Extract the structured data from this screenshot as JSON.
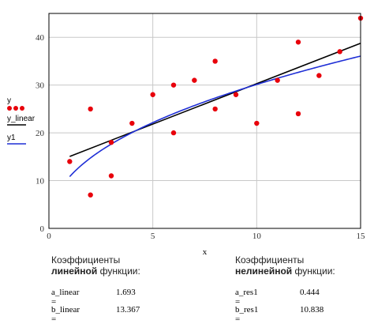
{
  "chart_data": {
    "type": "scatter",
    "xlabel": "x",
    "xlim": [
      0,
      15
    ],
    "ylim": [
      0,
      45
    ],
    "xticks": [
      0,
      5,
      10,
      15
    ],
    "yticks": [
      0,
      10,
      20,
      30,
      40
    ],
    "legend": {
      "y_label": "y",
      "y_linear_label": "y_linear",
      "y1_label": "y1",
      "placement": "left-outside"
    },
    "points": {
      "x": [
        1,
        2,
        2,
        3,
        3,
        4,
        5,
        6,
        6,
        7,
        8,
        8,
        9,
        10,
        11,
        12,
        12,
        13,
        14,
        15
      ],
      "y": [
        14,
        25,
        7,
        18,
        11,
        22,
        28,
        30,
        20,
        31,
        35,
        25,
        28,
        22,
        31,
        39,
        24,
        32,
        37,
        44
      ]
    },
    "linear": {
      "a": 1.693,
      "b": 13.367,
      "x_range": [
        1,
        15
      ]
    },
    "nonlinear": {
      "a": 0.444,
      "b": 10.838,
      "x_range": [
        1,
        15
      ]
    },
    "colors": {
      "points": "#e8000b",
      "linear": "#000000",
      "nonlinear": "#1f2fd6",
      "grid": "#c8c8c8",
      "frame": "#000000"
    }
  },
  "coef_linear": {
    "heading1": "Коэффициенты",
    "heading2_bold": "линейной",
    "heading2_rest": "функции:",
    "a_name": "a_linear =",
    "a_value": "1.693",
    "b_name": "b_linear =",
    "b_value": "13.367"
  },
  "coef_nonlinear": {
    "heading1": "Коэффициенты",
    "heading2_bold": "нелинейной",
    "heading2_rest": "функции:",
    "a_name": "a_res1 =",
    "a_value": "0.444",
    "b_name": "b_res1 =",
    "b_value": "10.838"
  }
}
